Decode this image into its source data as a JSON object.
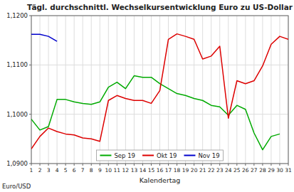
{
  "chart_data": {
    "type": "line",
    "title": "Tägl. durchschnittl. Wechselkursentwicklung Euro zu US-Dollar",
    "xlabel": "Kalendertag",
    "ylabel": "Euro/USD",
    "x": [
      1,
      2,
      3,
      4,
      5,
      6,
      7,
      8,
      9,
      10,
      11,
      12,
      13,
      14,
      15,
      16,
      17,
      18,
      19,
      20,
      21,
      22,
      23,
      24,
      25,
      26,
      27,
      28,
      29,
      30,
      31
    ],
    "xlim": [
      1,
      31
    ],
    "xticks": [
      1,
      2,
      3,
      4,
      5,
      6,
      7,
      8,
      9,
      10,
      11,
      12,
      13,
      14,
      15,
      16,
      17,
      18,
      19,
      20,
      21,
      22,
      23,
      24,
      25,
      26,
      27,
      28,
      29,
      30,
      31
    ],
    "ylim": [
      1.09,
      1.12
    ],
    "yticks": [
      {
        "value": 1.09,
        "label": "1,0900"
      },
      {
        "value": 1.1,
        "label": "1,1000"
      },
      {
        "value": 1.11,
        "label": "1,1100"
      },
      {
        "value": 1.12,
        "label": "1,1200"
      }
    ],
    "grid": true,
    "legend": "bottom",
    "series": [
      {
        "name": "Sep 19",
        "color": "#00aa00",
        "values": [
          1.099,
          1.0968,
          1.0975,
          1.103,
          1.103,
          1.1025,
          1.1022,
          1.102,
          1.1025,
          1.1055,
          1.1065,
          1.1052,
          1.1078,
          1.1075,
          1.1075,
          1.1062,
          1.1052,
          1.1042,
          1.1038,
          1.1032,
          1.1028,
          1.1018,
          1.1015,
          1.0998,
          1.1018,
          1.101,
          1.0962,
          1.0928,
          1.0955,
          1.096,
          null
        ]
      },
      {
        "name": "Okt 19",
        "color": "#dd0000",
        "values": [
          1.093,
          1.0955,
          1.0972,
          1.0965,
          1.096,
          1.0958,
          1.0952,
          1.095,
          1.0945,
          1.1028,
          1.1038,
          1.1032,
          1.1028,
          1.1028,
          1.1022,
          1.1048,
          1.1152,
          1.1163,
          1.1158,
          1.1152,
          1.1112,
          1.1118,
          1.1138,
          1.0992,
          1.1068,
          1.1062,
          1.1068,
          1.1098,
          1.1142,
          1.1158,
          1.1152
        ]
      },
      {
        "name": "Nov 19",
        "color": "#0000cc",
        "values": [
          1.1162,
          1.1162,
          1.1158,
          1.1148,
          null,
          null,
          null,
          null,
          null,
          null,
          null,
          null,
          null,
          null,
          null,
          null,
          null,
          null,
          null,
          null,
          null,
          null,
          null,
          null,
          null,
          null,
          null,
          null,
          null,
          null,
          null
        ]
      }
    ]
  }
}
